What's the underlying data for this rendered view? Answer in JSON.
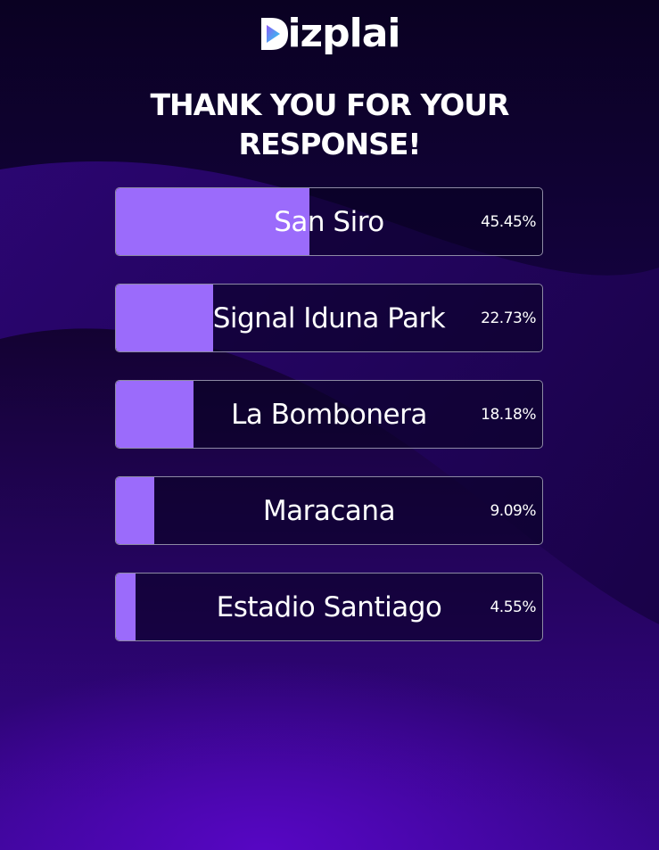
{
  "brand": {
    "name": "Dizplai",
    "text": "izplai"
  },
  "title": {
    "line1": "THANK YOU FOR YOUR",
    "line2": "RESPONSE!"
  },
  "results": [
    {
      "label": "San Siro",
      "percent_label": "45.45%",
      "percent": 45.45
    },
    {
      "label": "Signal Iduna Park",
      "percent_label": "22.73%",
      "percent": 22.73
    },
    {
      "label": "La Bombonera",
      "percent_label": "18.18%",
      "percent": 18.18
    },
    {
      "label": "Maracana",
      "percent_label": "9.09%",
      "percent": 9.09
    },
    {
      "label": "Estadio Santiago",
      "percent_label": "4.55%",
      "percent": 4.55
    }
  ],
  "colors": {
    "bar_fill": "#9b6bfb",
    "logo_gradient_start": "#8d5cf6",
    "logo_gradient_end": "#22d3ee"
  }
}
